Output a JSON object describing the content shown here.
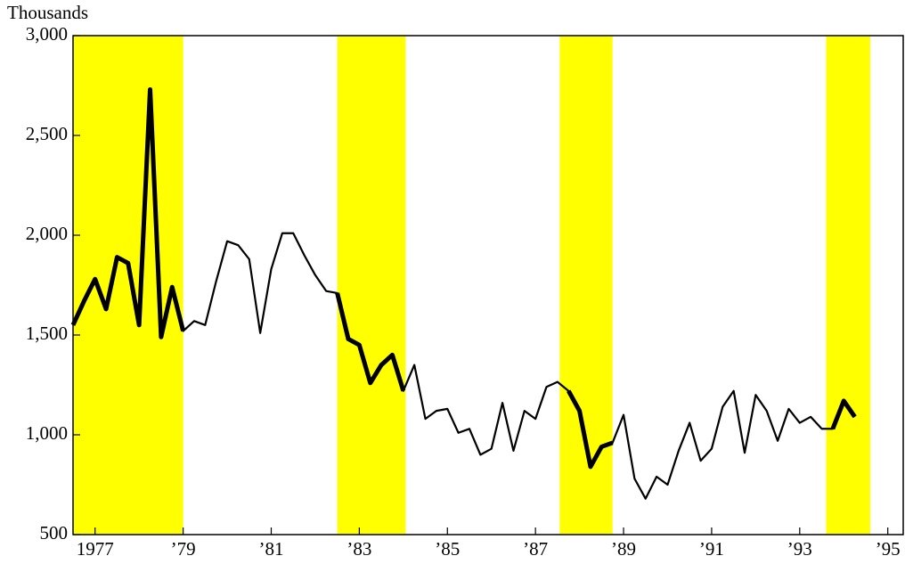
{
  "chart_data": {
    "type": "line",
    "y_axis_label": "Thousands",
    "x": [
      1976.5,
      1976.75,
      1977,
      1977.25,
      1977.5,
      1977.75,
      1978,
      1978.25,
      1978.5,
      1978.75,
      1979,
      1979.25,
      1979.5,
      1979.75,
      1980,
      1980.25,
      1980.5,
      1980.75,
      1981,
      1981.25,
      1981.5,
      1981.75,
      1982,
      1982.25,
      1982.5,
      1982.75,
      1983,
      1983.25,
      1983.5,
      1983.75,
      1984,
      1984.25,
      1984.5,
      1984.75,
      1985,
      1985.25,
      1985.5,
      1985.75,
      1986,
      1986.25,
      1986.5,
      1986.75,
      1987,
      1987.25,
      1987.5,
      1987.75,
      1988,
      1988.25,
      1988.5,
      1988.75,
      1989,
      1989.25,
      1989.5,
      1989.75,
      1990,
      1990.25,
      1990.5,
      1990.75,
      1991,
      1991.25,
      1991.5,
      1991.75,
      1992,
      1992.25,
      1992.5,
      1992.75,
      1993,
      1993.25,
      1993.5,
      1993.75,
      1994,
      1994.25
    ],
    "series": [
      {
        "color": "#000000",
        "values": [
          1550,
          1670,
          1780,
          1630,
          1890,
          1860,
          1550,
          2730,
          1490,
          1740,
          1520,
          1570,
          1550,
          1770,
          1970,
          1950,
          1880,
          1510,
          1830,
          2010,
          2010,
          1900,
          1800,
          1720,
          1710,
          1480,
          1450,
          1260,
          1350,
          1400,
          1220,
          1350,
          1080,
          1120,
          1130,
          1010,
          1030,
          900,
          930,
          1160,
          920,
          1120,
          1080,
          1240,
          1265,
          1220,
          1120,
          840,
          940,
          960,
          1100,
          780,
          680,
          790,
          750,
          920,
          1060,
          870,
          930,
          1140,
          1220,
          910,
          1200,
          1120,
          970,
          1130,
          1060,
          1090,
          1030,
          1030,
          1170,
          1090
        ]
      }
    ],
    "highlight_periods": [
      [
        1976.5,
        1979
      ],
      [
        1982.5,
        1984.05
      ],
      [
        1987.55,
        1988.75
      ],
      [
        1993.6,
        1994.6
      ]
    ],
    "highlight_color": "#ffff00",
    "xlim": [
      1976.5,
      1995.35
    ],
    "xticks": [
      {
        "value": 1977,
        "label": "1977"
      },
      {
        "value": 1979,
        "label": "’79"
      },
      {
        "value": 1981,
        "label": "’81"
      },
      {
        "value": 1983,
        "label": "’83"
      },
      {
        "value": 1985,
        "label": "’85"
      },
      {
        "value": 1987,
        "label": "’87"
      },
      {
        "value": 1989,
        "label": "’89"
      },
      {
        "value": 1991,
        "label": "’91"
      },
      {
        "value": 1993,
        "label": "’93"
      },
      {
        "value": 1995,
        "label": "’95"
      }
    ],
    "ylim": [
      500,
      3000
    ],
    "yticks": [
      500,
      {
        "value": 1000,
        "label": "1,000"
      },
      {
        "value": 1500,
        "label": "1,500"
      },
      {
        "value": 2000,
        "label": "2,000"
      },
      {
        "value": 2500,
        "label": "2,500"
      },
      {
        "value": 3000,
        "label": "3,000"
      }
    ]
  }
}
